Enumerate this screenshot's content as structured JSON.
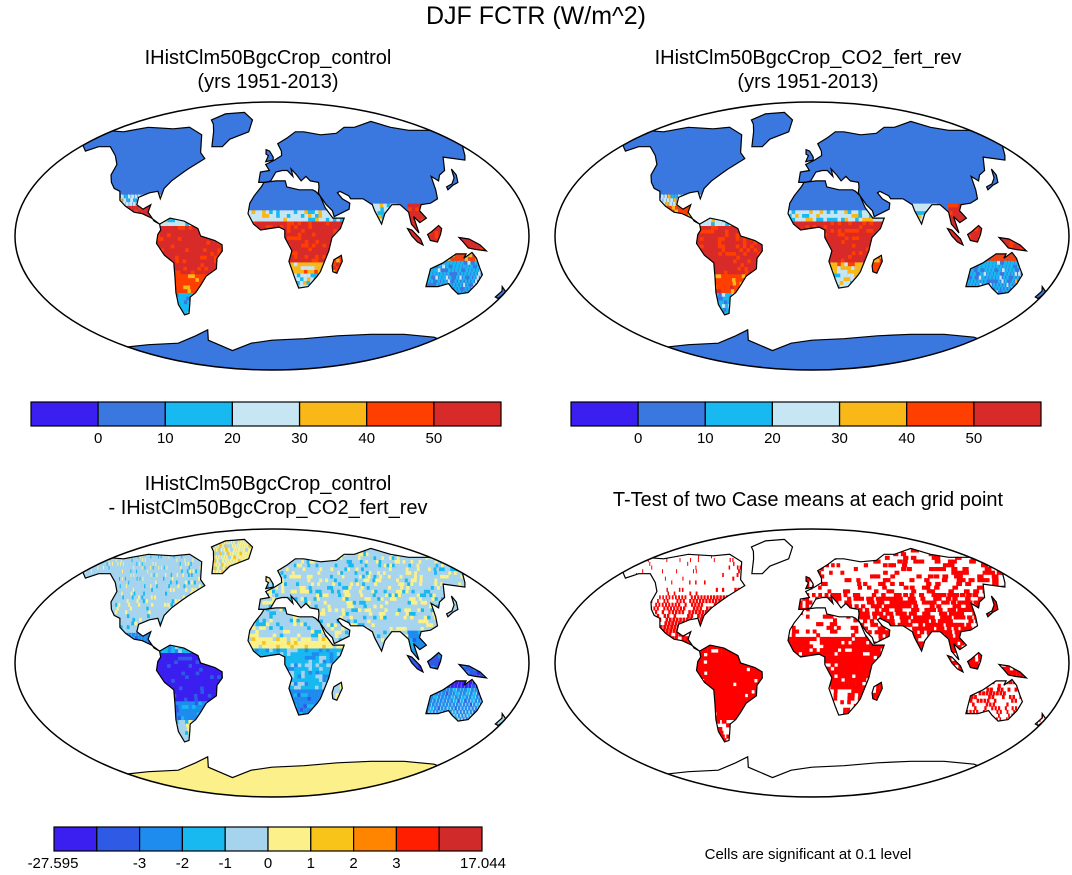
{
  "figure": {
    "title": "DJF FCTR (W/m^2)"
  },
  "panels": [
    {
      "title_line1": "IHistClm50BgcCrop_control",
      "title_line2": "(yrs 1951-2013)"
    },
    {
      "title_line1": "IHistClm50BgcCrop_CO2_fert_rev",
      "title_line2": "(yrs 1951-2013)"
    },
    {
      "title_line1": "IHistClm50BgcCrop_control",
      "title_line2": "- IHistClm50BgcCrop_CO2_fert_rev"
    },
    {
      "title_line1": "T-Test of two Case means at each grid point",
      "title_line2": ""
    }
  ],
  "colorbars": {
    "absolute": {
      "colors": [
        "#3a1ff0",
        "#3a78e0",
        "#18b8f0",
        "#c7e6f4",
        "#f9b817",
        "#ff3f00",
        "#d92a2a"
      ],
      "labels": [
        "0",
        "10",
        "20",
        "30",
        "40",
        "50"
      ]
    },
    "difference": {
      "colors": [
        "#3a1ff0",
        "#2f5ae6",
        "#1e8cee",
        "#18b8f0",
        "#a6d4ee",
        "#fbf08a",
        "#f9c419",
        "#ff8400",
        "#ff1f00",
        "#d12a2a"
      ],
      "labels": [
        "-27.595",
        "-3",
        "-2",
        "-1",
        "0",
        "1",
        "2",
        "3",
        "17.044"
      ]
    }
  },
  "ttest": {
    "significance_color": "#ff0000",
    "note": "Cells are significant at 0.1 level"
  },
  "map_colors": {
    "land_base_abs": "#3a78e0",
    "land_base_diff": "#a6d4ee",
    "antarctica_diff": "#fbf08a",
    "ocean": "#ffffff"
  }
}
